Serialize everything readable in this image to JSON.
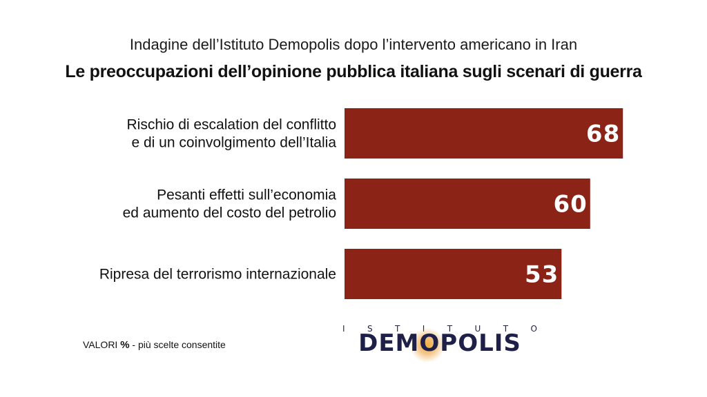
{
  "header": {
    "subtitle": "Indagine dell’Istituto Demopolis dopo l’intervento americano in Iran",
    "title": "Le preoccupazioni dell’opinione pubblica italiana sugli scenari di guerra"
  },
  "chart_data": {
    "type": "bar",
    "orientation": "horizontal",
    "title": "Le preoccupazioni dell’opinione pubblica italiana sugli scenari di guerra",
    "subtitle": "Indagine dell’Istituto Demopolis dopo l’intervento americano in Iran",
    "categories": [
      [
        "Rischio di escalation del conflitto",
        "e di un coinvolgimento dell’Italia"
      ],
      [
        "Pesanti effetti sull’economia",
        "ed aumento del costo del petrolio"
      ],
      [
        "Ripresa del terrorismo internazionale"
      ]
    ],
    "values": [
      68,
      60,
      53
    ],
    "value_labels": [
      "68",
      "60",
      "53"
    ],
    "xlim": [
      0,
      100
    ],
    "grid": false,
    "legend": "none",
    "bar_color": "#8b2316"
  },
  "footer": {
    "note_prefix": "VALORI",
    "note_unit": "%",
    "note_suffix": " - più scelte consentite"
  },
  "logo": {
    "top_letters": [
      "I",
      "S",
      "T",
      "I",
      "T",
      "U",
      "T",
      "O"
    ],
    "name": "DEMOPOLIS",
    "color": "#1e2047"
  }
}
